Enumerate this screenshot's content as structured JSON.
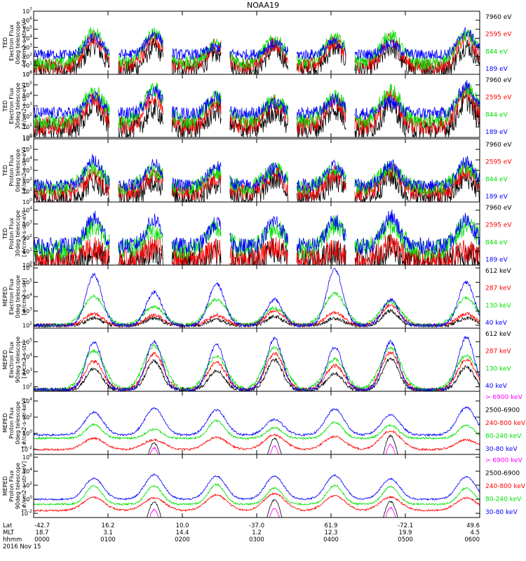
{
  "title": "NOAA19",
  "colors": {
    "blue": "#0000ff",
    "red": "#ff0000",
    "green": "#00e000",
    "black": "#000000",
    "magenta": "#ff00ff"
  },
  "chart_data": [
    {
      "type": "line",
      "instrument": "TED",
      "ylabel": [
        "TED",
        "Electron Flux",
        "0deg telescope",
        "[#/cm2-s-str-eV]"
      ],
      "yscale": "log",
      "ytick_labels": [
        "10^0",
        "10^1",
        "10^2",
        "10^3",
        "10^4",
        "10^5",
        "10^6",
        "10^7"
      ],
      "ylim_exp": [
        0,
        7
      ],
      "series": [
        {
          "name": "7960 eV",
          "color": "black",
          "base": 0.6,
          "peak": [
            3.2,
            3.0,
            2.4,
            2.8,
            3.0,
            3.0,
            3.1
          ]
        },
        {
          "name": "2595 eV",
          "color": "red",
          "base": 0.9,
          "peak": [
            4.0,
            4.0,
            3.2,
            3.5,
            3.6,
            3.7,
            4.0
          ]
        },
        {
          "name": "844 eV",
          "color": "green",
          "base": 1.2,
          "peak": [
            4.7,
            4.5,
            3.3,
            3.8,
            4.0,
            4.3,
            4.3
          ]
        },
        {
          "name": "189 eV",
          "color": "blue",
          "base": 2.2,
          "peak": [
            4.1,
            4.5,
            3.0,
            3.4,
            3.6,
            3.4,
            4.7
          ]
        }
      ]
    },
    {
      "type": "line",
      "instrument": "TED",
      "ylabel": [
        "TED",
        "Electron Flux",
        "30deg telescope",
        "[#/cm2-s-str-eV]"
      ],
      "yscale": "log",
      "ytick_labels": [
        "10^0",
        "10^1",
        "10^2",
        "10^3",
        "10^4",
        "10^5",
        "10^6"
      ],
      "ylim_exp": [
        0,
        6
      ],
      "series": [
        {
          "name": "7960 eV",
          "color": "black",
          "base": 0.8,
          "peak": [
            3.0,
            2.7,
            2.5,
            2.5,
            2.7,
            3.1,
            3.5
          ]
        },
        {
          "name": "2595 eV",
          "color": "red",
          "base": 1.1,
          "peak": [
            3.7,
            4.0,
            3.3,
            3.2,
            3.5,
            3.9,
            4.2
          ]
        },
        {
          "name": "844 eV",
          "color": "green",
          "base": 1.5,
          "peak": [
            4.3,
            4.6,
            3.8,
            3.5,
            3.8,
            4.4,
            4.7
          ]
        },
        {
          "name": "189 eV",
          "color": "blue",
          "base": 2.3,
          "peak": [
            3.8,
            4.5,
            3.9,
            3.2,
            3.6,
            3.4,
            4.9
          ]
        }
      ]
    },
    {
      "type": "line",
      "instrument": "TED",
      "ylabel": [
        "TED",
        "Proton Flux",
        "0deg telescope",
        "[#/cm2-s-str-eV]"
      ],
      "yscale": "log",
      "ytick_labels": [
        "10^0",
        "10^1",
        "10^2",
        "10^3",
        "10^4",
        "10^5",
        "10^6"
      ],
      "ylim_exp": [
        0,
        6
      ],
      "series": [
        {
          "name": "7960 eV",
          "color": "black",
          "base": 0.5,
          "peak": [
            2.0,
            2.0,
            1.8,
            2.2,
            2.0,
            2.4,
            2.3
          ]
        },
        {
          "name": "2595 eV",
          "color": "red",
          "base": 0.9,
          "peak": [
            2.4,
            2.6,
            2.2,
            2.8,
            2.6,
            3.0,
            2.8
          ]
        },
        {
          "name": "844 eV",
          "color": "green",
          "base": 1.3,
          "peak": [
            3.3,
            3.0,
            2.9,
            3.1,
            3.2,
            3.2,
            3.3
          ]
        },
        {
          "name": "189 eV",
          "color": "blue",
          "base": 1.6,
          "peak": [
            4.0,
            3.6,
            3.4,
            3.2,
            3.4,
            3.6,
            3.8
          ]
        }
      ]
    },
    {
      "type": "line",
      "instrument": "TED",
      "ylabel": [
        "TED",
        "Proton Flux",
        "30deg telescope",
        "[#/cm2-s-str-eV]"
      ],
      "yscale": "log",
      "ytick_labels": [
        "10^0",
        "10^1",
        "10^2",
        "10^3",
        "10^4"
      ],
      "ylim_exp": [
        0,
        4.6
      ],
      "series": [
        {
          "name": "7960 eV",
          "color": "black",
          "base": 0.2,
          "peak": [
            0.9,
            1.0,
            0.8,
            1.2,
            0.8,
            1.2,
            0.8
          ]
        },
        {
          "name": "2595 eV",
          "color": "red",
          "base": 0.4,
          "peak": [
            1.2,
            1.3,
            1.1,
            1.3,
            1.1,
            1.5,
            1.1
          ]
        },
        {
          "name": "844 eV",
          "color": "green",
          "base": 1.1,
          "peak": [
            2.8,
            2.5,
            2.6,
            2.7,
            2.9,
            2.9,
            2.9
          ]
        },
        {
          "name": "189 eV",
          "color": "blue",
          "base": 1.4,
          "peak": [
            3.4,
            3.3,
            3.0,
            3.2,
            3.2,
            3.5,
            3.3
          ]
        }
      ]
    },
    {
      "type": "line",
      "instrument": "MEPED",
      "ylabel": [
        "MEPED",
        "Electron Flux",
        "0deg telescope",
        "[#/cm2-s-str]"
      ],
      "yscale": "log",
      "ytick_labels": [
        "10^2",
        "10^3",
        "10^4",
        "10^5",
        "10^6"
      ],
      "ylim_exp": [
        1.8,
        6.2
      ],
      "series": [
        {
          "name": "612 keV",
          "color": "black",
          "base": 2.0,
          "peak": [
            2.5,
            2.5,
            2.4,
            2.6,
            2.5,
            3.0,
            2.5
          ]
        },
        {
          "name": "287 keV",
          "color": "red",
          "base": 2.0,
          "peak": [
            2.8,
            2.7,
            2.7,
            3.0,
            2.9,
            3.4,
            2.8
          ]
        },
        {
          "name": "130 keV",
          "color": "green",
          "base": 2.0,
          "peak": [
            4.0,
            3.3,
            3.8,
            3.2,
            4.2,
            3.6,
            3.9
          ]
        },
        {
          "name": "40 keV",
          "color": "blue",
          "base": 2.0,
          "peak": [
            5.5,
            4.3,
            4.9,
            3.8,
            5.9,
            3.8,
            5.0
          ]
        }
      ]
    },
    {
      "type": "line",
      "instrument": "MEPED",
      "ylabel": [
        "MEPED",
        "Electron Flux",
        "90deg telescope",
        "[#/cm2-s-str]"
      ],
      "yscale": "log",
      "ytick_labels": [
        "10^2",
        "10^3",
        "10^4",
        "10^5"
      ],
      "ylim_exp": [
        1.7,
        5.9
      ],
      "series": [
        {
          "name": "612 keV",
          "color": "black",
          "base": 1.8,
          "peak": [
            3.2,
            3.7,
            3.1,
            3.8,
            2.9,
            3.9,
            3.3
          ]
        },
        {
          "name": "287 keV",
          "color": "red",
          "base": 1.8,
          "peak": [
            3.7,
            4.2,
            3.6,
            4.2,
            3.4,
            4.3,
            3.8
          ]
        },
        {
          "name": "130 keV",
          "color": "green",
          "base": 1.8,
          "peak": [
            4.4,
            4.7,
            4.0,
            4.6,
            3.8,
            4.6,
            4.1
          ]
        },
        {
          "name": "40 keV",
          "color": "blue",
          "base": 1.8,
          "peak": [
            5.0,
            5.0,
            4.8,
            5.2,
            4.6,
            5.0,
            5.3
          ]
        }
      ]
    },
    {
      "type": "line",
      "instrument": "MEPED",
      "ylabel": [
        "MEPED",
        "Proton Flux",
        "0deg telescope",
        "[#/cm2-s-str-keV]"
      ],
      "yscale": "log",
      "ytick_labels": [
        "10^-2",
        "10^0",
        "10^2",
        "10^4"
      ],
      "ylim_exp": [
        -2.6,
        5.2
      ],
      "series": [
        {
          "name": "> 6900 keV",
          "color": "magenta",
          "base": -9,
          "peak": [
            -9,
            -1.8,
            -9,
            -1.6,
            -9,
            -1.4,
            -9
          ]
        },
        {
          "name": "2500-6900",
          "color": "black",
          "base": -9,
          "peak": [
            -9,
            -1.2,
            -9,
            -0.6,
            -9,
            -0.3,
            -9
          ]
        },
        {
          "name": "240-800 keV",
          "color": "red",
          "base": -2.0,
          "peak": [
            -0.6,
            -0.8,
            -0.5,
            -0.2,
            -0.4,
            0.3,
            -0.8
          ]
        },
        {
          "name": "80-240 keV",
          "color": "green",
          "base": -0.6,
          "peak": [
            1.1,
            0.5,
            1.6,
            0.7,
            1.4,
            1.0,
            1.0
          ]
        },
        {
          "name": "30-80 keV",
          "color": "blue",
          "base": -0.2,
          "peak": [
            2.6,
            3.1,
            2.9,
            1.7,
            3.0,
            2.3,
            3.2
          ]
        }
      ]
    },
    {
      "type": "line",
      "instrument": "MEPED",
      "ylabel": [
        "MEPED",
        "Proton Flux",
        "90deg telescope",
        "[#/cm2-s-str-keV]"
      ],
      "yscale": "log",
      "ytick_labels": [
        "10^-2",
        "10^0",
        "10^2",
        "10^4",
        "10^6"
      ],
      "ylim_exp": [
        -2.6,
        6.4
      ],
      "series": [
        {
          "name": "> 6900 keV",
          "color": "magenta",
          "base": -9,
          "peak": [
            -9,
            -1.5,
            -9,
            -1.3,
            -9,
            -1.2,
            -9
          ]
        },
        {
          "name": "2500-6900",
          "color": "black",
          "base": -9,
          "peak": [
            -9,
            -0.4,
            -9,
            -0.1,
            -9,
            -0.3,
            -9
          ]
        },
        {
          "name": "240-800 keV",
          "color": "red",
          "base": -1.6,
          "peak": [
            0.3,
            0.2,
            0.6,
            0.8,
            0.5,
            0.3,
            0.2
          ]
        },
        {
          "name": "80-240 keV",
          "color": "green",
          "base": -0.7,
          "peak": [
            1.9,
            1.9,
            2.1,
            1.6,
            2.0,
            1.8,
            1.6
          ]
        },
        {
          "name": "30-80 keV",
          "color": "blue",
          "base": 0.0,
          "peak": [
            3.0,
            3.5,
            3.3,
            3.3,
            3.4,
            2.9,
            3.2
          ]
        }
      ]
    }
  ],
  "x_axis": {
    "row_labels": [
      "Lat",
      "MLT",
      "hhmm",
      "2016 Nov 15"
    ],
    "ticks": [
      {
        "lat": "-42.7",
        "mlt": "18.7",
        "time": "0000"
      },
      {
        "lat": "16.2",
        "mlt": "3.1",
        "time": "0100"
      },
      {
        "lat": "10.0",
        "mlt": "14.4",
        "time": "0200"
      },
      {
        "lat": "-37.0",
        "mlt": "1.2",
        "time": "0300"
      },
      {
        "lat": "61.9",
        "mlt": "12.3",
        "time": "0400"
      },
      {
        "lat": "-72.1",
        "mlt": "19.9",
        "time": "0500"
      },
      {
        "lat": "49.6",
        "mlt": "4.5",
        "time": "0600"
      }
    ]
  },
  "passes": {
    "full": [
      [
        0.17,
        0.31
      ],
      [
        0.32,
        0.46
      ],
      [
        0.47,
        0.61
      ],
      [
        0.62,
        0.74
      ],
      [
        0.75,
        0.86
      ],
      [
        0.87,
        1.0
      ]
    ],
    "partial": [
      [
        0.09,
        0.18
      ],
      [
        0.24,
        0.3
      ],
      [
        0.38,
        0.44
      ],
      [
        0.52,
        0.56
      ],
      [
        0.65,
        0.7
      ],
      [
        0.78,
        0.82
      ],
      [
        0.95,
        0.99
      ]
    ]
  }
}
